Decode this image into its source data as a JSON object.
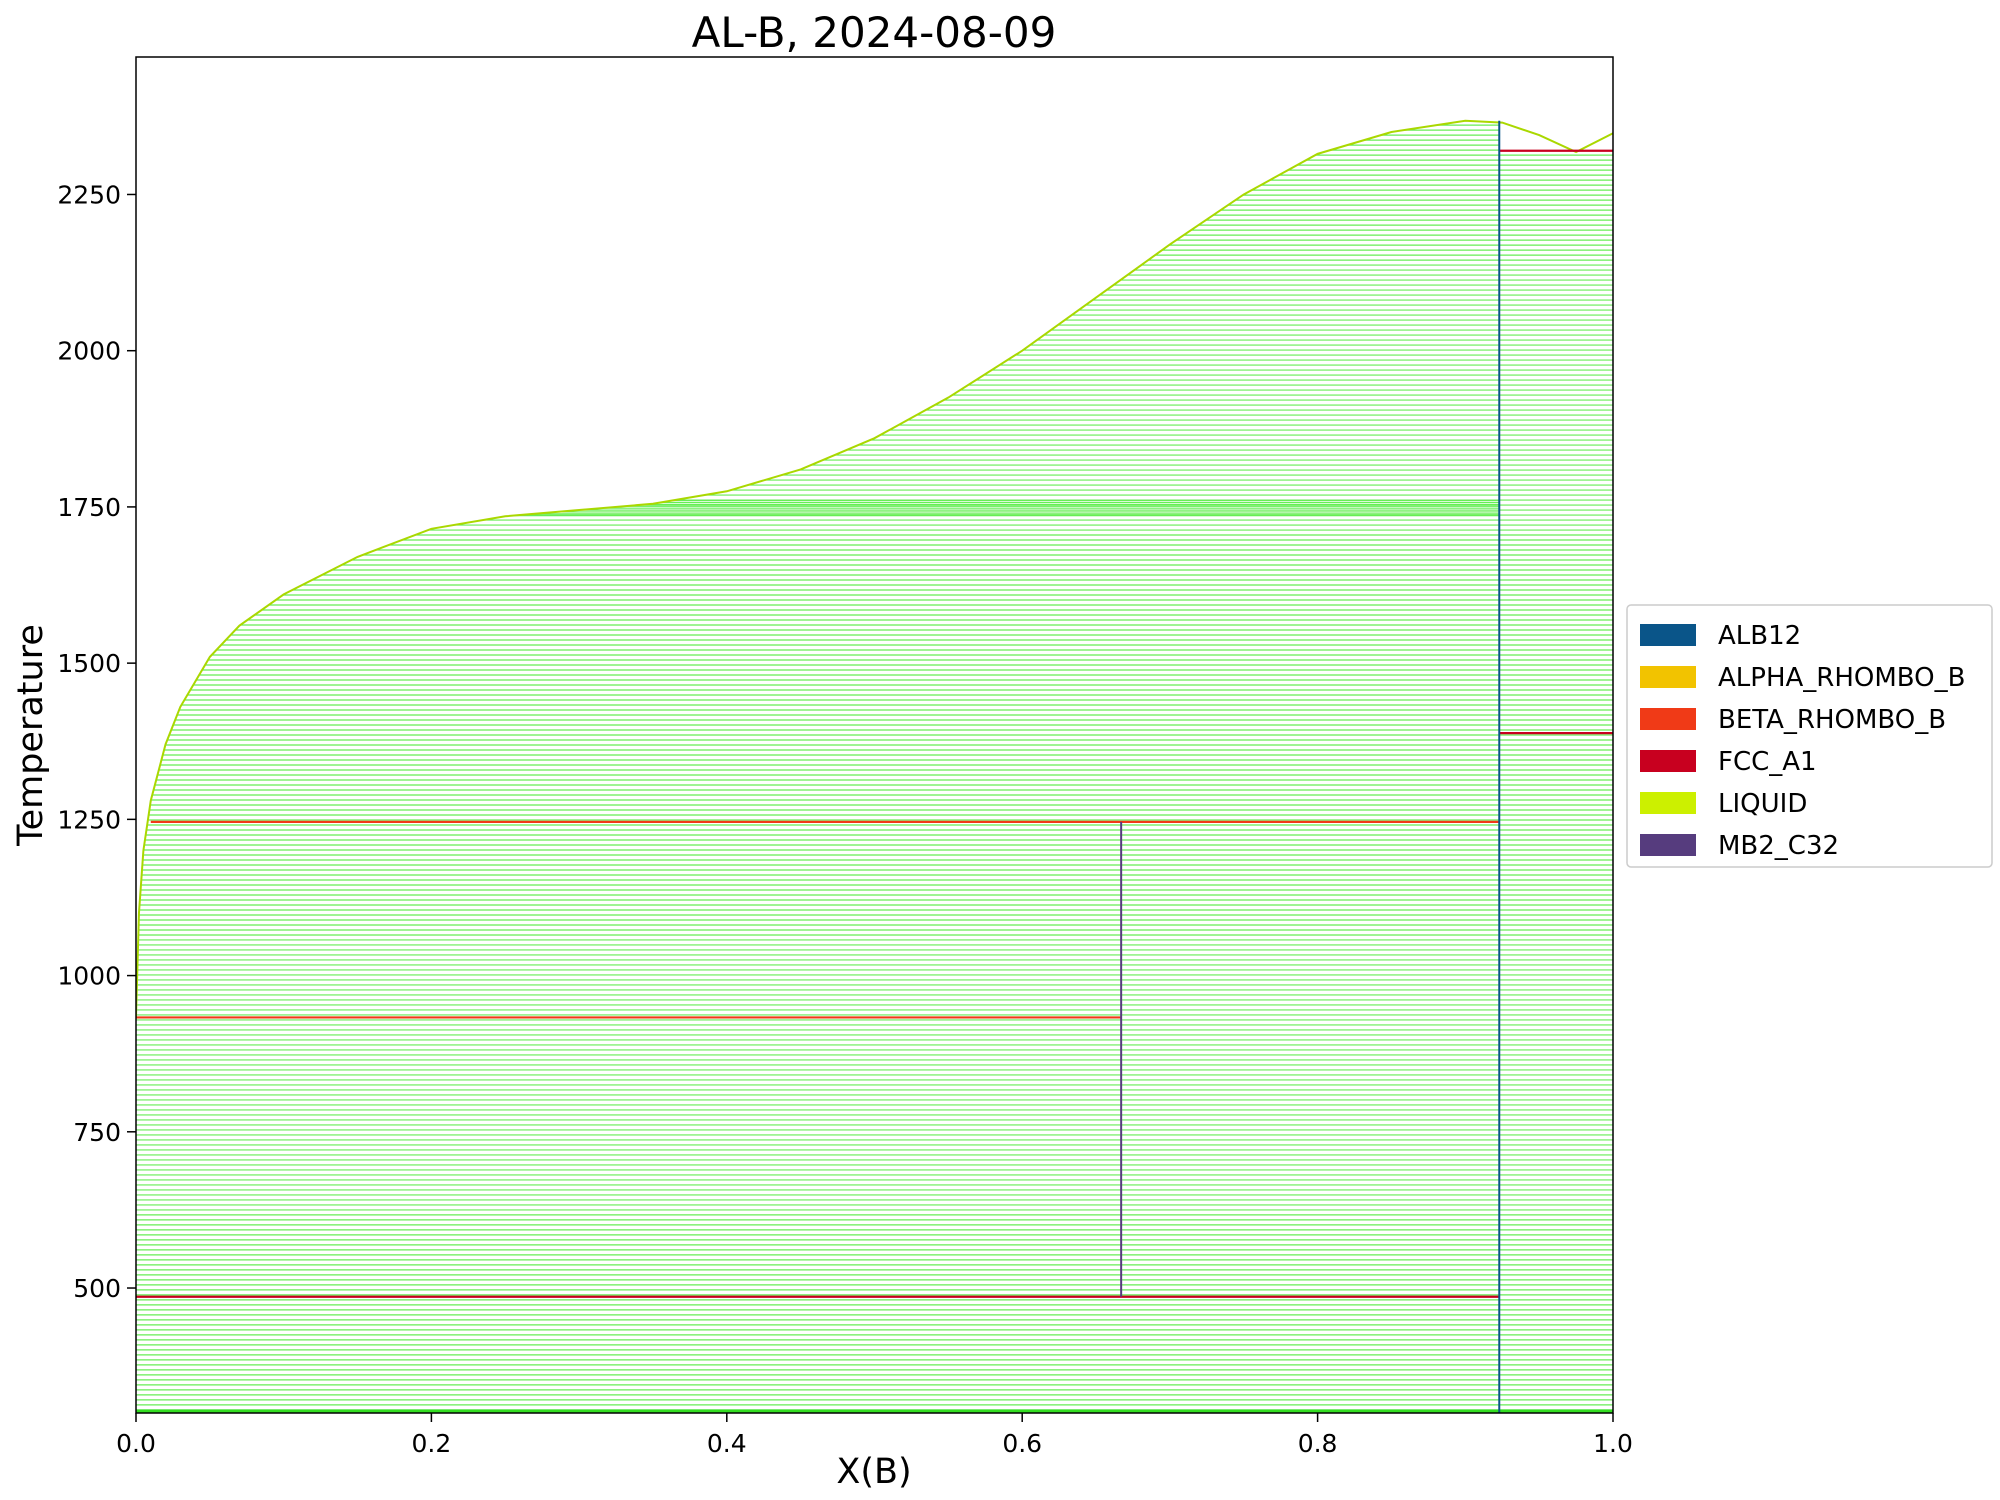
{
  "chart_data": {
    "type": "line",
    "title": "AL-B, 2024-08-09",
    "xlabel": "X(B)",
    "ylabel": "Temperature",
    "xlim": [
      0.0,
      1.0
    ],
    "ylim": [
      300,
      2470
    ],
    "xticks": [
      0.0,
      0.2,
      0.4,
      0.6,
      0.8,
      1.0
    ],
    "xtick_labels": [
      "0.0",
      "0.2",
      "0.4",
      "0.6",
      "0.8",
      "1.0"
    ],
    "yticks": [
      500,
      750,
      1000,
      1250,
      1500,
      1750,
      2000,
      2250
    ],
    "ytick_labels": [
      "500",
      "750",
      "1000",
      "1250",
      "1500",
      "1750",
      "2000",
      "2250"
    ],
    "grid": false,
    "legend_position": "outside-right",
    "legend": [
      {
        "name": "ALB12",
        "color": "#0a5589"
      },
      {
        "name": "ALPHA_RHOMBO_B",
        "color": "#f2c300"
      },
      {
        "name": "BETA_RHOMBO_B",
        "color": "#f03a17"
      },
      {
        "name": "FCC_A1",
        "color": "#c8001f"
      },
      {
        "name": "LIQUID",
        "color": "#ccf000"
      },
      {
        "name": "MB2_C32",
        "color": "#563c7e"
      }
    ],
    "tieline_color": "#66ee55",
    "liquidus": {
      "x": [
        0.0,
        0.002,
        0.005,
        0.01,
        0.02,
        0.03,
        0.05,
        0.07,
        0.1,
        0.15,
        0.2,
        0.25,
        0.3,
        0.35,
        0.4,
        0.45,
        0.5,
        0.55,
        0.6,
        0.65,
        0.7,
        0.75,
        0.8,
        0.85,
        0.9,
        0.925,
        0.95,
        0.975,
        1.0
      ],
      "y": [
        933,
        1100,
        1200,
        1280,
        1370,
        1430,
        1510,
        1560,
        1610,
        1670,
        1715,
        1735,
        1745,
        1755,
        1775,
        1810,
        1860,
        1925,
        2000,
        2085,
        2170,
        2250,
        2315,
        2350,
        2368,
        2365,
        2345,
        2318,
        2348
      ]
    },
    "invariant_lines": [
      {
        "phase": "FCC_A1",
        "x": [
          0.0,
          0.923
        ],
        "y": 486
      },
      {
        "phase": "BETA_RHOMBO_B",
        "x": [
          0.0,
          0.667
        ],
        "y": 933
      },
      {
        "phase": "BETA_RHOMBO_B",
        "x": [
          0.01,
          0.923
        ],
        "y": 1246
      },
      {
        "phase": "FCC_A1",
        "x": [
          0.923,
          1.0
        ],
        "y": 1388
      },
      {
        "phase": "FCC_A1",
        "x": [
          0.923,
          1.0
        ],
        "y": 2320
      }
    ],
    "phase_boundaries": [
      {
        "phase": "MB2_C32",
        "x": 0.667,
        "y": [
          486,
          1246
        ]
      },
      {
        "phase": "ALB12",
        "x": 0.923,
        "y": [
          300,
          2368
        ]
      }
    ]
  }
}
